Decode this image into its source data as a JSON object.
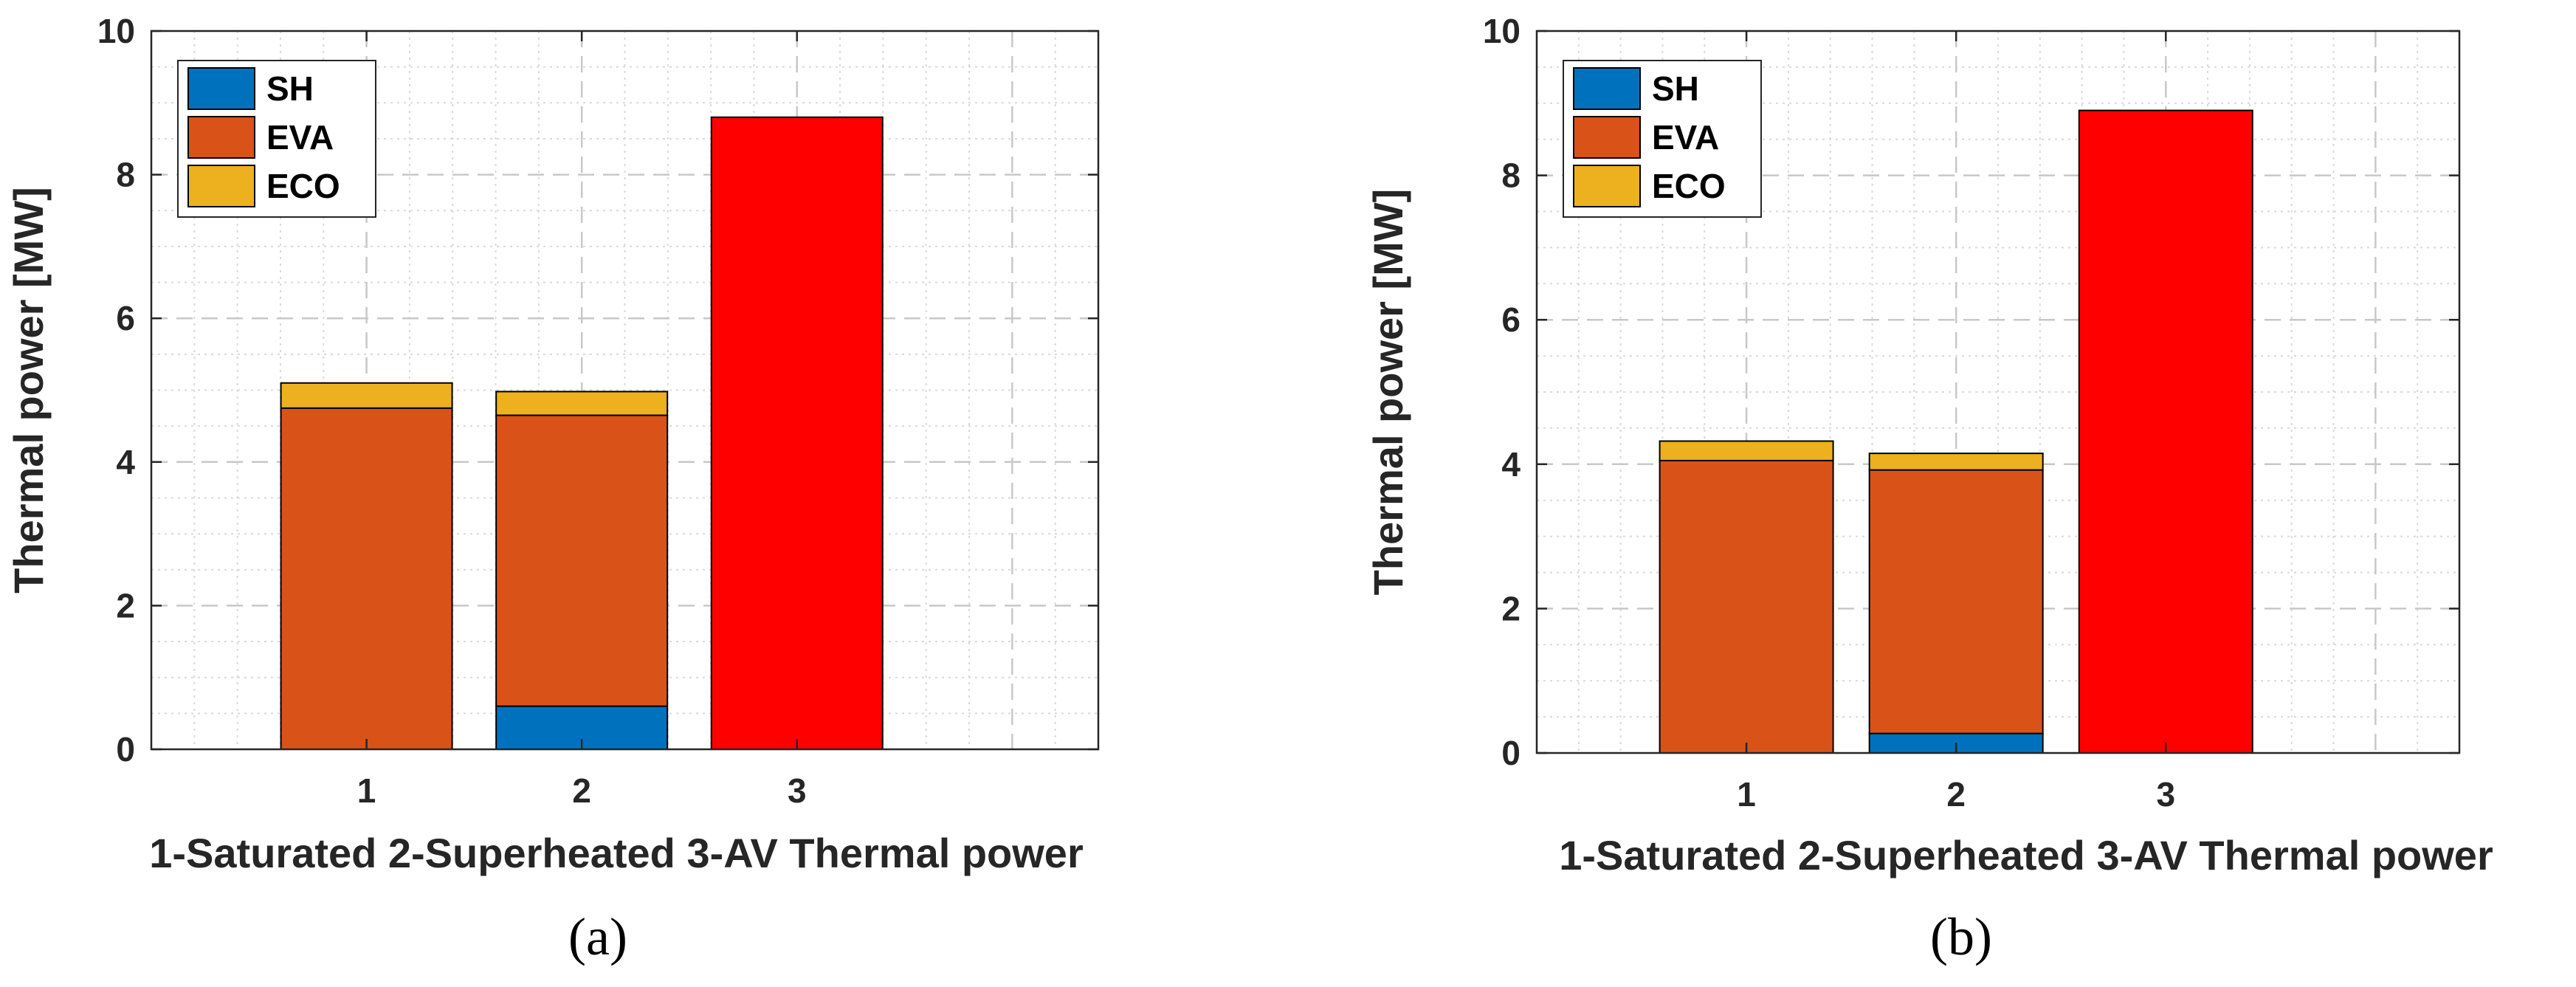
{
  "chart_data": [
    {
      "type": "bar",
      "stacked": true,
      "panel_label": "(a)",
      "xlabel": "1-Saturated 2-Superheated 3-AV Thermal power",
      "ylabel": "Thermal power [MW]",
      "ylim": [
        0,
        10
      ],
      "yticks": [
        "0",
        "2",
        "4",
        "6",
        "8",
        "10"
      ],
      "xlim": [
        0,
        4.4
      ],
      "categories": [
        "1",
        "2",
        "3"
      ],
      "grid": true,
      "minor_grid": true,
      "legend": {
        "position": "top-left",
        "entries": [
          "SH",
          "EVA",
          "ECO"
        ]
      },
      "series": [
        {
          "name": "SH",
          "color": "#0072BD",
          "values": [
            0,
            0.6,
            0
          ]
        },
        {
          "name": "EVA",
          "color": "#D95319",
          "values": [
            4.75,
            4.05,
            0
          ]
        },
        {
          "name": "ECO",
          "color": "#EDB120",
          "values": [
            0.35,
            0.33,
            0
          ]
        }
      ],
      "extra_bars": [
        {
          "category": "3",
          "value": 8.8,
          "color": "#FF0000"
        }
      ]
    },
    {
      "type": "bar",
      "stacked": true,
      "panel_label": "(b)",
      "xlabel": "1-Saturated 2-Superheated 3-AV Thermal power",
      "ylabel": "Thermal power [MW]",
      "ylim": [
        0,
        10
      ],
      "yticks": [
        "0",
        "2",
        "4",
        "6",
        "8",
        "10"
      ],
      "xlim": [
        0,
        4.4
      ],
      "categories": [
        "1",
        "2",
        "3"
      ],
      "grid": true,
      "minor_grid": true,
      "legend": {
        "position": "top-left",
        "entries": [
          "SH",
          "EVA",
          "ECO"
        ]
      },
      "series": [
        {
          "name": "SH",
          "color": "#0072BD",
          "values": [
            0,
            0.27,
            0
          ]
        },
        {
          "name": "EVA",
          "color": "#D95319",
          "values": [
            4.05,
            3.65,
            0
          ]
        },
        {
          "name": "ECO",
          "color": "#EDB120",
          "values": [
            0.27,
            0.23,
            0
          ]
        }
      ],
      "extra_bars": [
        {
          "category": "3",
          "value": 8.9,
          "color": "#FF0000"
        }
      ]
    }
  ]
}
